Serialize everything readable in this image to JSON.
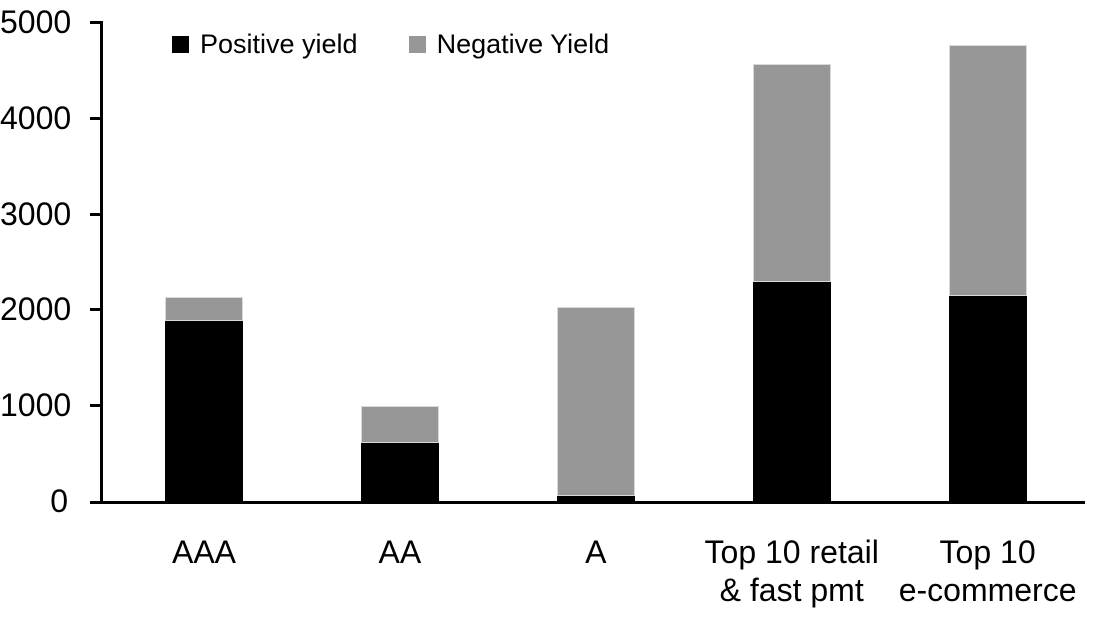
{
  "chart_data": {
    "type": "bar",
    "stacked": true,
    "title": "",
    "xlabel": "",
    "ylabel": "",
    "categories": [
      "AAA",
      "AA",
      "A",
      "Top 10 retail\n& fast pmt",
      "Top 10\ne-commerce"
    ],
    "series": [
      {
        "name": "Positive yield",
        "color": "#000000",
        "values": [
          1880,
          610,
          50,
          2285,
          2140
        ]
      },
      {
        "name": "Negative Yield",
        "color": "#979797",
        "values": [
          250,
          390,
          1975,
          2275,
          2620
        ]
      }
    ],
    "stacked_totals": [
      2130,
      1000,
      2025,
      4560,
      4760
    ],
    "ylim": [
      0,
      5000
    ],
    "yticks": [
      0,
      1000,
      2000,
      3000,
      4000,
      5000
    ],
    "ytick_labels": [
      "0",
      "1000",
      "2000",
      "3000",
      "4000",
      "5000"
    ],
    "grid": false,
    "legend_position": "top",
    "legend": [
      {
        "label": "Positive yield",
        "color": "#000000"
      },
      {
        "label": "Negative Yield",
        "color": "#979797"
      }
    ],
    "colors": {
      "axis": "#000000",
      "background": "#ffffff",
      "positive": "#000000",
      "negative": "#979797"
    }
  }
}
